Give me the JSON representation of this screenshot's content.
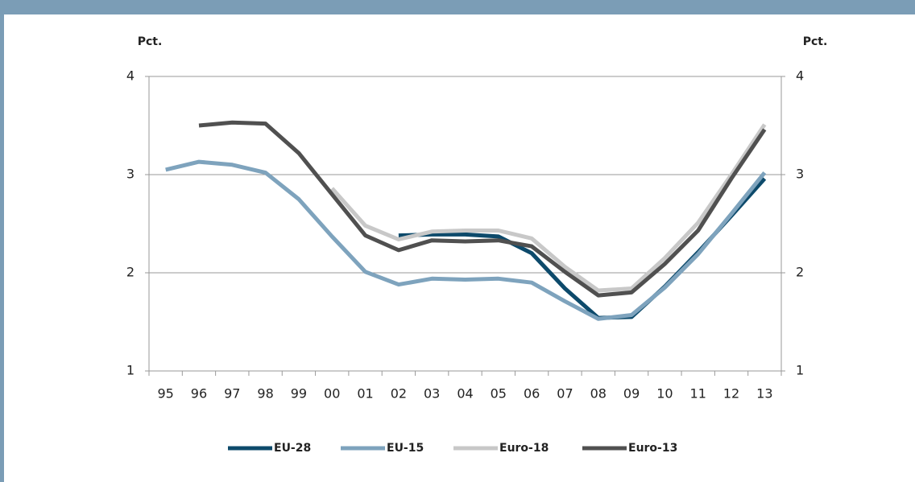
{
  "chart_data": {
    "type": "line",
    "y_label": "Pct.",
    "y2_label": "Pct.",
    "categories": [
      "95",
      "96",
      "97",
      "98",
      "99",
      "00",
      "01",
      "02",
      "03",
      "04",
      "05",
      "06",
      "07",
      "08",
      "09",
      "10",
      "11",
      "12",
      "13"
    ],
    "series": [
      {
        "name": "EU-28",
        "color": "#0d4a6b",
        "values": [
          null,
          null,
          null,
          null,
          null,
          null,
          null,
          2.38,
          2.39,
          2.39,
          2.37,
          2.2,
          1.84,
          1.54,
          1.55,
          1.86,
          2.21,
          2.58,
          2.96
        ]
      },
      {
        "name": "EU-15",
        "color": "#7ea3bd",
        "values": [
          3.05,
          3.13,
          3.1,
          3.02,
          2.75,
          2.37,
          2.01,
          1.88,
          1.94,
          1.93,
          1.94,
          1.9,
          1.71,
          1.53,
          1.57,
          1.85,
          2.19,
          2.6,
          3.02
        ]
      },
      {
        "name": "Euro-18",
        "color": "#c8c8c8",
        "values": [
          null,
          null,
          null,
          null,
          null,
          2.86,
          2.48,
          2.34,
          2.42,
          2.43,
          2.43,
          2.35,
          2.06,
          1.82,
          1.84,
          2.15,
          2.51,
          3.0,
          3.51
        ]
      },
      {
        "name": "Euro-13",
        "color": "#505050",
        "values": [
          null,
          3.5,
          3.53,
          3.52,
          3.22,
          2.8,
          2.38,
          2.23,
          2.33,
          2.32,
          2.33,
          2.27,
          2.01,
          1.77,
          1.8,
          2.09,
          2.43,
          2.96,
          3.46
        ]
      }
    ],
    "ylim": [
      1,
      4
    ],
    "yticks": [
      1,
      2,
      3,
      4
    ],
    "grid": true,
    "legend": "bottom"
  }
}
